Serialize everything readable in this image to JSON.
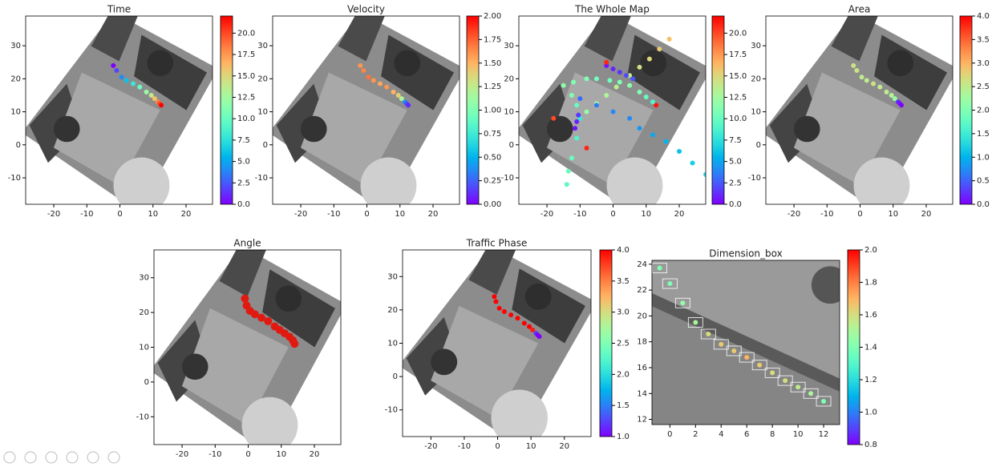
{
  "chart_data": [
    {
      "type": "scatter",
      "title": "Time",
      "xlim": [
        -28.5,
        28
      ],
      "ylim": [
        -18,
        39
      ],
      "xticks": [
        -20,
        -10,
        0,
        10,
        20
      ],
      "yticks": [
        -10,
        0,
        10,
        20,
        30
      ],
      "colormap": "rainbow",
      "clim": [
        0,
        22
      ],
      "cticks": [
        {
          "value": 0,
          "label": "0.0"
        },
        {
          "value": 2.5,
          "label": "2.5"
        },
        {
          "value": 5,
          "label": "5.0"
        },
        {
          "value": 7.5,
          "label": "7.5"
        },
        {
          "value": 10,
          "label": "10.0"
        },
        {
          "value": 12.5,
          "label": "12.5"
        },
        {
          "value": 15,
          "label": "15.0"
        },
        {
          "value": 17.5,
          "label": "17.5"
        },
        {
          "value": 20,
          "label": "20.0"
        }
      ],
      "series": [
        {
          "x": [
            -2,
            -1,
            0.5,
            2,
            4,
            6,
            8,
            9.5,
            10.5,
            11.5,
            12,
            12.5
          ],
          "y": [
            24,
            22.5,
            20.5,
            19.5,
            18.5,
            17.5,
            16,
            15,
            14,
            13,
            12.5,
            12
          ],
          "values": [
            0,
            2,
            4,
            6,
            8,
            10,
            12,
            14,
            16,
            18,
            20,
            22
          ]
        }
      ]
    },
    {
      "type": "scatter",
      "title": "Velocity",
      "xlim": [
        -28.5,
        28
      ],
      "ylim": [
        -18,
        39
      ],
      "xticks": [
        -20,
        -10,
        0,
        10,
        20
      ],
      "yticks": [
        -10,
        0,
        10,
        20,
        30
      ],
      "colormap": "rainbow",
      "clim": [
        0,
        2
      ],
      "cticks": [
        {
          "value": 0,
          "label": "0.00"
        },
        {
          "value": 0.25,
          "label": "0.25"
        },
        {
          "value": 0.5,
          "label": "0.50"
        },
        {
          "value": 0.75,
          "label": "0.75"
        },
        {
          "value": 1,
          "label": "1.00"
        },
        {
          "value": 1.25,
          "label": "1.25"
        },
        {
          "value": 1.5,
          "label": "1.50"
        },
        {
          "value": 1.75,
          "label": "1.75"
        },
        {
          "value": 2,
          "label": "2.00"
        }
      ],
      "series": [
        {
          "x": [
            -2,
            -1,
            0.5,
            2,
            4,
            6,
            8,
            9.5,
            10.5,
            11.5,
            12,
            12.5
          ],
          "y": [
            24,
            22.5,
            20.5,
            19.5,
            18.5,
            17.5,
            16,
            15,
            14,
            13,
            12.5,
            12
          ],
          "values": [
            1.6,
            1.65,
            1.7,
            1.6,
            1.55,
            1.6,
            1.5,
            1.4,
            1.2,
            0.4,
            0.2,
            0.1
          ]
        }
      ]
    },
    {
      "type": "scatter",
      "title": "The Whole Map",
      "xlim": [
        -28.5,
        28
      ],
      "ylim": [
        -18,
        39
      ],
      "xticks": [
        -20,
        -10,
        0,
        10,
        20
      ],
      "yticks": [
        -10,
        0,
        10,
        20,
        30
      ],
      "colormap": "rainbow",
      "clim": [
        0,
        22
      ],
      "cticks": [
        {
          "value": 0,
          "label": "0.0"
        },
        {
          "value": 2.5,
          "label": "2.5"
        },
        {
          "value": 5,
          "label": "5.0"
        },
        {
          "value": 7.5,
          "label": "7.5"
        },
        {
          "value": 10,
          "label": "10.0"
        },
        {
          "value": 12.5,
          "label": "12.5"
        },
        {
          "value": 15,
          "label": "15.0"
        },
        {
          "value": 17.5,
          "label": "17.5"
        },
        {
          "value": 20,
          "label": "20.0"
        }
      ],
      "series": [
        {
          "x": [
            -12,
            -8,
            -5,
            -1,
            2,
            5,
            8,
            10,
            12
          ],
          "y": [
            19,
            20,
            20,
            19.5,
            19,
            18,
            16,
            14.5,
            13
          ],
          "values": [
            11,
            11,
            10.5,
            10.5,
            11,
            11.5,
            11,
            10,
            9
          ]
        },
        {
          "x": [
            -8,
            -5,
            -2,
            1,
            5,
            8,
            11,
            14,
            17
          ],
          "y": [
            10,
            12.5,
            15,
            17.5,
            21,
            23.5,
            26,
            29,
            32
          ],
          "values": [
            12,
            12.5,
            13,
            13.5,
            14,
            14.5,
            15,
            15.5,
            16
          ]
        },
        {
          "x": [
            -10,
            -5,
            0,
            5,
            8,
            12,
            16,
            20,
            24,
            28
          ],
          "y": [
            14,
            12,
            10,
            8,
            5,
            3,
            1,
            -2,
            -5.5,
            -9
          ],
          "values": [
            3,
            3.5,
            4,
            4,
            4.5,
            5,
            5.5,
            6,
            6.5,
            7
          ]
        },
        {
          "x": [
            -14,
            -13.5,
            -12.5,
            -11,
            -10,
            -11,
            -12.5,
            -15
          ],
          "y": [
            -12,
            -8,
            -4,
            2,
            8,
            12,
            15,
            18
          ],
          "values": [
            9.5,
            10,
            10,
            9,
            8,
            10,
            11,
            11.5
          ]
        },
        {
          "x": [
            -11,
            -11.5,
            -10.5
          ],
          "y": [
            7,
            5,
            9
          ],
          "values": [
            1,
            0.5,
            1.5
          ]
        },
        {
          "x": [
            -2,
            0,
            2,
            4,
            6
          ],
          "y": [
            24,
            23,
            22,
            21,
            20
          ],
          "values": [
            0.5,
            1,
            1.5,
            2,
            2.5
          ]
        },
        {
          "x": [
            -8,
            -18,
            13,
            -2
          ],
          "y": [
            -1,
            8,
            12,
            25
          ],
          "values": [
            21,
            20,
            21.5,
            21
          ]
        }
      ]
    },
    {
      "type": "scatter",
      "title": "Area",
      "xlim": [
        -28.5,
        28
      ],
      "ylim": [
        -18,
        39
      ],
      "xticks": [
        -20,
        -10,
        0,
        10,
        20
      ],
      "yticks": [
        -10,
        0,
        10,
        20,
        30
      ],
      "colormap": "rainbow",
      "clim": [
        0,
        4
      ],
      "cticks": [
        {
          "value": 0,
          "label": "0.0"
        },
        {
          "value": 0.5,
          "label": "0.5"
        },
        {
          "value": 1,
          "label": "1.0"
        },
        {
          "value": 1.5,
          "label": "1.5"
        },
        {
          "value": 2,
          "label": "2.0"
        },
        {
          "value": 2.5,
          "label": "2.5"
        },
        {
          "value": 3,
          "label": "3.0"
        },
        {
          "value": 3.5,
          "label": "3.5"
        },
        {
          "value": 4,
          "label": "4.0"
        }
      ],
      "series": [
        {
          "x": [
            -2,
            -1,
            0.5,
            2,
            4,
            6,
            8,
            9.5,
            10.5,
            11.5,
            12,
            12.5
          ],
          "y": [
            24,
            22.5,
            20.5,
            19.5,
            18.5,
            17.5,
            16,
            15,
            14,
            13,
            12.5,
            12
          ],
          "values": [
            2.6,
            2.6,
            2.5,
            2.5,
            2.6,
            2.5,
            2.5,
            2.4,
            2.2,
            0.2,
            0.1,
            0
          ]
        }
      ]
    },
    {
      "type": "scatter",
      "title": "Angle",
      "xlim": [
        -28.5,
        28
      ],
      "ylim": [
        -18,
        38
      ],
      "xticks": [
        -20,
        -10,
        0,
        10,
        20
      ],
      "yticks": [
        -10,
        0,
        10,
        20,
        30
      ],
      "color": "#e01a10",
      "series": [
        {
          "x": [
            -1,
            -0.5,
            0.5,
            2,
            4,
            6,
            8,
            9.5,
            11,
            12.5,
            13.5,
            14
          ],
          "y": [
            24,
            22,
            20.5,
            19.5,
            18.5,
            17.5,
            16,
            15,
            14,
            13,
            12,
            11
          ]
        }
      ]
    },
    {
      "type": "scatter",
      "title": "Traffic Phase",
      "xlim": [
        -28.5,
        28
      ],
      "ylim": [
        -18,
        38
      ],
      "xticks": [
        -20,
        -10,
        0,
        10,
        20
      ],
      "yticks": [
        -10,
        0,
        10,
        20,
        30
      ],
      "colormap": "rainbow",
      "clim": [
        1,
        4
      ],
      "cticks": [
        {
          "value": 1,
          "label": "1.0"
        },
        {
          "value": 1.5,
          "label": "1.5"
        },
        {
          "value": 2,
          "label": "2.0"
        },
        {
          "value": 2.5,
          "label": "2.5"
        },
        {
          "value": 3,
          "label": "3.0"
        },
        {
          "value": 3.5,
          "label": "3.5"
        },
        {
          "value": 4,
          "label": "4.0"
        }
      ],
      "series": [
        {
          "x": [
            -1,
            -0.5,
            0.5,
            2,
            4,
            6,
            8,
            9.5,
            10.5,
            11.5,
            12,
            12.5
          ],
          "y": [
            24,
            22.5,
            20.5,
            19.5,
            18.5,
            17.5,
            16,
            15,
            14,
            13,
            12.5,
            12
          ],
          "values": [
            4,
            4,
            4,
            4,
            4,
            4,
            4,
            4,
            3.9,
            1.2,
            1,
            1
          ]
        }
      ]
    },
    {
      "type": "scatter",
      "title": "Dimension_box",
      "xlim": [
        -1.4,
        13.25
      ],
      "ylim": [
        11.6,
        24.3
      ],
      "xticks": [
        0,
        2,
        4,
        6,
        8,
        10,
        12
      ],
      "yticks": [
        12,
        14,
        16,
        18,
        20,
        22,
        24
      ],
      "colormap": "rainbow",
      "clim": [
        0.8,
        2.0
      ],
      "cticks": [
        {
          "value": 0.8,
          "label": "0.8"
        },
        {
          "value": 1.0,
          "label": "1.0"
        },
        {
          "value": 1.2,
          "label": "1.2"
        },
        {
          "value": 1.4,
          "label": "1.4"
        },
        {
          "value": 1.6,
          "label": "1.6"
        },
        {
          "value": 1.8,
          "label": "1.8"
        },
        {
          "value": 2.0,
          "label": "2.0"
        }
      ],
      "series": [
        {
          "x": [
            -0.8,
            0,
            1,
            2,
            3,
            4,
            5,
            6,
            7,
            8,
            9,
            10,
            11,
            12
          ],
          "y": [
            23.7,
            22.5,
            21,
            19.5,
            18.6,
            17.8,
            17.3,
            16.8,
            16.2,
            15.6,
            15,
            14.5,
            14,
            13.4
          ],
          "values": [
            1.4,
            1.4,
            1.45,
            1.5,
            1.6,
            1.65,
            1.65,
            1.7,
            1.65,
            1.6,
            1.6,
            1.55,
            1.5,
            1.4
          ]
        }
      ]
    }
  ]
}
